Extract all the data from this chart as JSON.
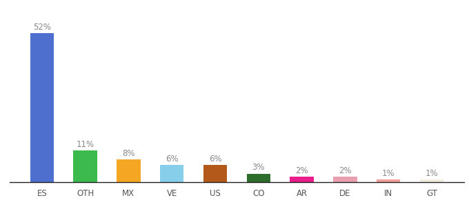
{
  "categories": [
    "ES",
    "OTH",
    "MX",
    "VE",
    "US",
    "CO",
    "AR",
    "DE",
    "IN",
    "GT"
  ],
  "values": [
    52,
    11,
    8,
    6,
    6,
    3,
    2,
    2,
    1,
    1
  ],
  "colors": [
    "#4f6fce",
    "#3dba4e",
    "#f5a623",
    "#87ceeb",
    "#b35a1a",
    "#2d6e2d",
    "#e91e8c",
    "#e8a0b0",
    "#f4a09a",
    "#f0ede0"
  ],
  "label_color": "#888888",
  "background_color": "#ffffff",
  "bar_label_fontsize": 8.5,
  "tick_fontsize": 8.5,
  "ylim": [
    0,
    60
  ],
  "bar_width": 0.55,
  "figsize": [
    6.8,
    3.0
  ],
  "dpi": 100
}
